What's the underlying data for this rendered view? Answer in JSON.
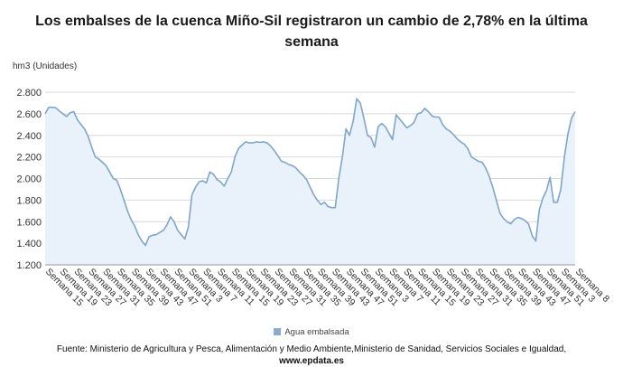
{
  "title": "Los embalses de la cuenca Miño-Sil registraron un cambio de 2,78% en la última semana",
  "unit_label": "hm3 (Unidades)",
  "legend": "Agua embalsada",
  "source_line1": "Fuente: Ministerio de Agricultura y Pesca, Alimentación y Medio Ambiente,Ministerio de Sanidad, Servicios Sociales e Igualdad,",
  "source_line2": "www.epdata.es",
  "colors": {
    "line": "#7ea6cc",
    "area": "#e9f2fa",
    "grid": "#d9d9d9"
  },
  "chart_data": {
    "type": "area",
    "ylim": [
      1200,
      2800
    ],
    "yticks": [
      "1.200",
      "1.400",
      "1.600",
      "1.800",
      "2.000",
      "2.200",
      "2.400",
      "2.600",
      "2.800"
    ],
    "ytick_values": [
      1200,
      1400,
      1600,
      1800,
      2000,
      2200,
      2400,
      2600,
      2800
    ],
    "xtick_labels": [
      "Semana 15",
      "Semana 19",
      "Semana 23",
      "Semana 27",
      "Semana 31",
      "Semana 35",
      "Semana 39",
      "Semana 43",
      "Semana 47",
      "Semana 51",
      "Semana 3",
      "Semana 7",
      "Semana 11",
      "Semana 15",
      "Semana 19",
      "Semana 23",
      "Semana 27",
      "Semana 31",
      "Semana 35",
      "Semana 39",
      "Semana 43",
      "Semana 47",
      "Semana 51",
      "Semana 3",
      "Semana 7",
      "Semana 11",
      "Semana 15",
      "Semana 19",
      "Semana 23",
      "Semana 27",
      "Semana 31",
      "Semana 35",
      "Semana 39",
      "Semana 43",
      "Semana 47",
      "Semana 51",
      "Semana 3",
      "Semana 8"
    ],
    "series": [
      {
        "name": "Agua embalsada",
        "values": [
          2600,
          2660,
          2660,
          2655,
          2625,
          2600,
          2575,
          2610,
          2620,
          2545,
          2500,
          2460,
          2390,
          2290,
          2200,
          2180,
          2150,
          2120,
          2060,
          2000,
          1985,
          1900,
          1800,
          1700,
          1620,
          1560,
          1480,
          1420,
          1380,
          1460,
          1475,
          1480,
          1500,
          1520,
          1570,
          1645,
          1600,
          1520,
          1480,
          1440,
          1550,
          1850,
          1920,
          1970,
          1980,
          1960,
          2060,
          2040,
          1990,
          1970,
          1930,
          2000,
          2060,
          2200,
          2280,
          2310,
          2340,
          2330,
          2330,
          2340,
          2335,
          2340,
          2330,
          2300,
          2260,
          2210,
          2160,
          2150,
          2130,
          2120,
          2100,
          2060,
          2030,
          1990,
          1920,
          1850,
          1800,
          1760,
          1780,
          1740,
          1730,
          1730,
          2000,
          2200,
          2460,
          2400,
          2530,
          2740,
          2700,
          2560,
          2400,
          2380,
          2290,
          2480,
          2510,
          2480,
          2420,
          2360,
          2590,
          2550,
          2510,
          2470,
          2490,
          2520,
          2600,
          2610,
          2650,
          2620,
          2580,
          2570,
          2570,
          2500,
          2460,
          2440,
          2410,
          2370,
          2340,
          2320,
          2280,
          2200,
          2180,
          2160,
          2150,
          2100,
          2020,
          1920,
          1800,
          1680,
          1630,
          1600,
          1580,
          1620,
          1640,
          1630,
          1610,
          1580,
          1470,
          1420,
          1710,
          1820,
          1890,
          2010,
          1780,
          1780,
          1900,
          2200,
          2420,
          2560,
          2620
        ]
      }
    ]
  }
}
